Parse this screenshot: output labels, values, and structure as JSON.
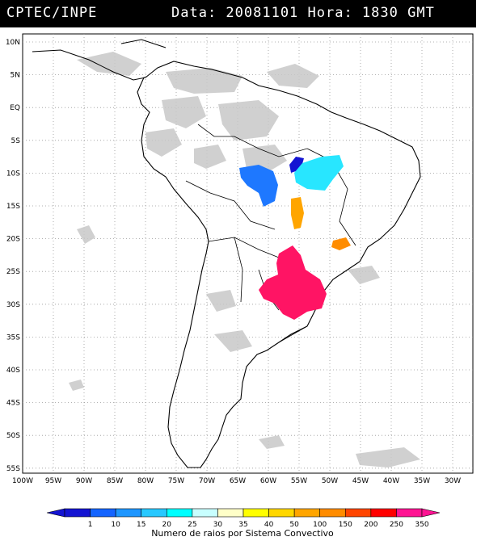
{
  "header": {
    "org": "CPTEC/INPE",
    "timestamp": "Data: 20081101 Hora: 1830 GMT"
  },
  "map": {
    "lat_labels": [
      "10N",
      "5N",
      "EQ",
      "5S",
      "10S",
      "15S",
      "20S",
      "25S",
      "30S",
      "35S",
      "40S",
      "45S",
      "50S",
      "55S"
    ],
    "lon_labels": [
      "100W",
      "95W",
      "90W",
      "85W",
      "80W",
      "75W",
      "70W",
      "65W",
      "60W",
      "55W",
      "50W",
      "45W",
      "40W",
      "35W",
      "30W"
    ],
    "cloud_color": "#c8c8c8",
    "coast_color": "#000000"
  },
  "legend": {
    "title": "Numero de raios por Sistema Convectivo",
    "values": [
      "1",
      "10",
      "15",
      "20",
      "25",
      "30",
      "35",
      "40",
      "50",
      "100",
      "150",
      "200",
      "250",
      "350"
    ],
    "colors": [
      "#1414d2",
      "#1464ff",
      "#1e96ff",
      "#28c8ff",
      "#00ffff",
      "#c8ffff",
      "#ffffc8",
      "#ffff00",
      "#ffd700",
      "#ffa500",
      "#ff8c00",
      "#ff4500",
      "#ff0000",
      "#ff1493"
    ]
  },
  "systems": [
    {
      "name": "system-10s-55w",
      "color": "#1414d2"
    },
    {
      "name": "system-10s-60w",
      "color": "#1e78ff"
    },
    {
      "name": "system-10s-50w",
      "color": "#28e6ff"
    },
    {
      "name": "system-17s-55w",
      "color": "#ffa500"
    },
    {
      "name": "system-21s-47w",
      "color": "#ff8c00"
    },
    {
      "name": "system-29s-53w",
      "color": "#ff1464"
    }
  ]
}
